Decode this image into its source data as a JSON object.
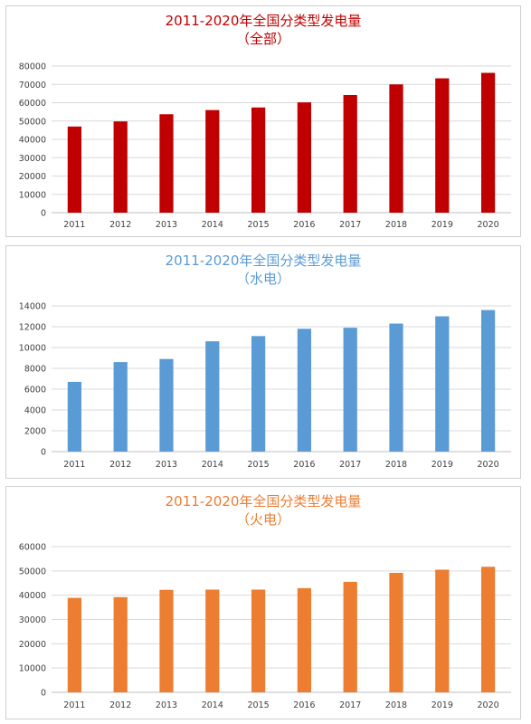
{
  "chart_data": [
    {
      "type": "bar",
      "title": "2011-2020年全国分类型发电量",
      "subtitle": "（全部）",
      "color": "#C00000",
      "categories": [
        "2011",
        "2012",
        "2013",
        "2014",
        "2015",
        "2016",
        "2017",
        "2018",
        "2019",
        "2020"
      ],
      "values": [
        47000,
        49800,
        53700,
        56000,
        57400,
        60200,
        64200,
        70000,
        73300,
        76300
      ],
      "ylim": [
        0,
        80000
      ],
      "yticks": [
        0,
        10000,
        20000,
        30000,
        40000,
        50000,
        60000,
        70000,
        80000
      ],
      "grid": true,
      "xlabel": "",
      "ylabel": ""
    },
    {
      "type": "bar",
      "title": "2011-2020年全国分类型发电量",
      "subtitle": "（水电）",
      "color": "#5B9BD5",
      "categories": [
        "2011",
        "2012",
        "2013",
        "2014",
        "2015",
        "2016",
        "2017",
        "2018",
        "2019",
        "2020"
      ],
      "values": [
        6700,
        8600,
        8900,
        10600,
        11100,
        11800,
        11900,
        12300,
        13000,
        13600
      ],
      "ylim": [
        0,
        14000
      ],
      "yticks": [
        0,
        2000,
        4000,
        6000,
        8000,
        10000,
        12000,
        14000
      ],
      "grid": true,
      "xlabel": "",
      "ylabel": ""
    },
    {
      "type": "bar",
      "title": "2011-2020年全国分类型发电量",
      "subtitle": "（火电）",
      "color": "#ED7D31",
      "categories": [
        "2011",
        "2012",
        "2013",
        "2014",
        "2015",
        "2016",
        "2017",
        "2018",
        "2019",
        "2020"
      ],
      "values": [
        38900,
        39200,
        42200,
        42300,
        42300,
        42900,
        45500,
        49200,
        50500,
        51700
      ],
      "ylim": [
        0,
        60000
      ],
      "yticks": [
        0,
        10000,
        20000,
        30000,
        40000,
        50000,
        60000
      ],
      "grid": true,
      "xlabel": "",
      "ylabel": ""
    }
  ]
}
